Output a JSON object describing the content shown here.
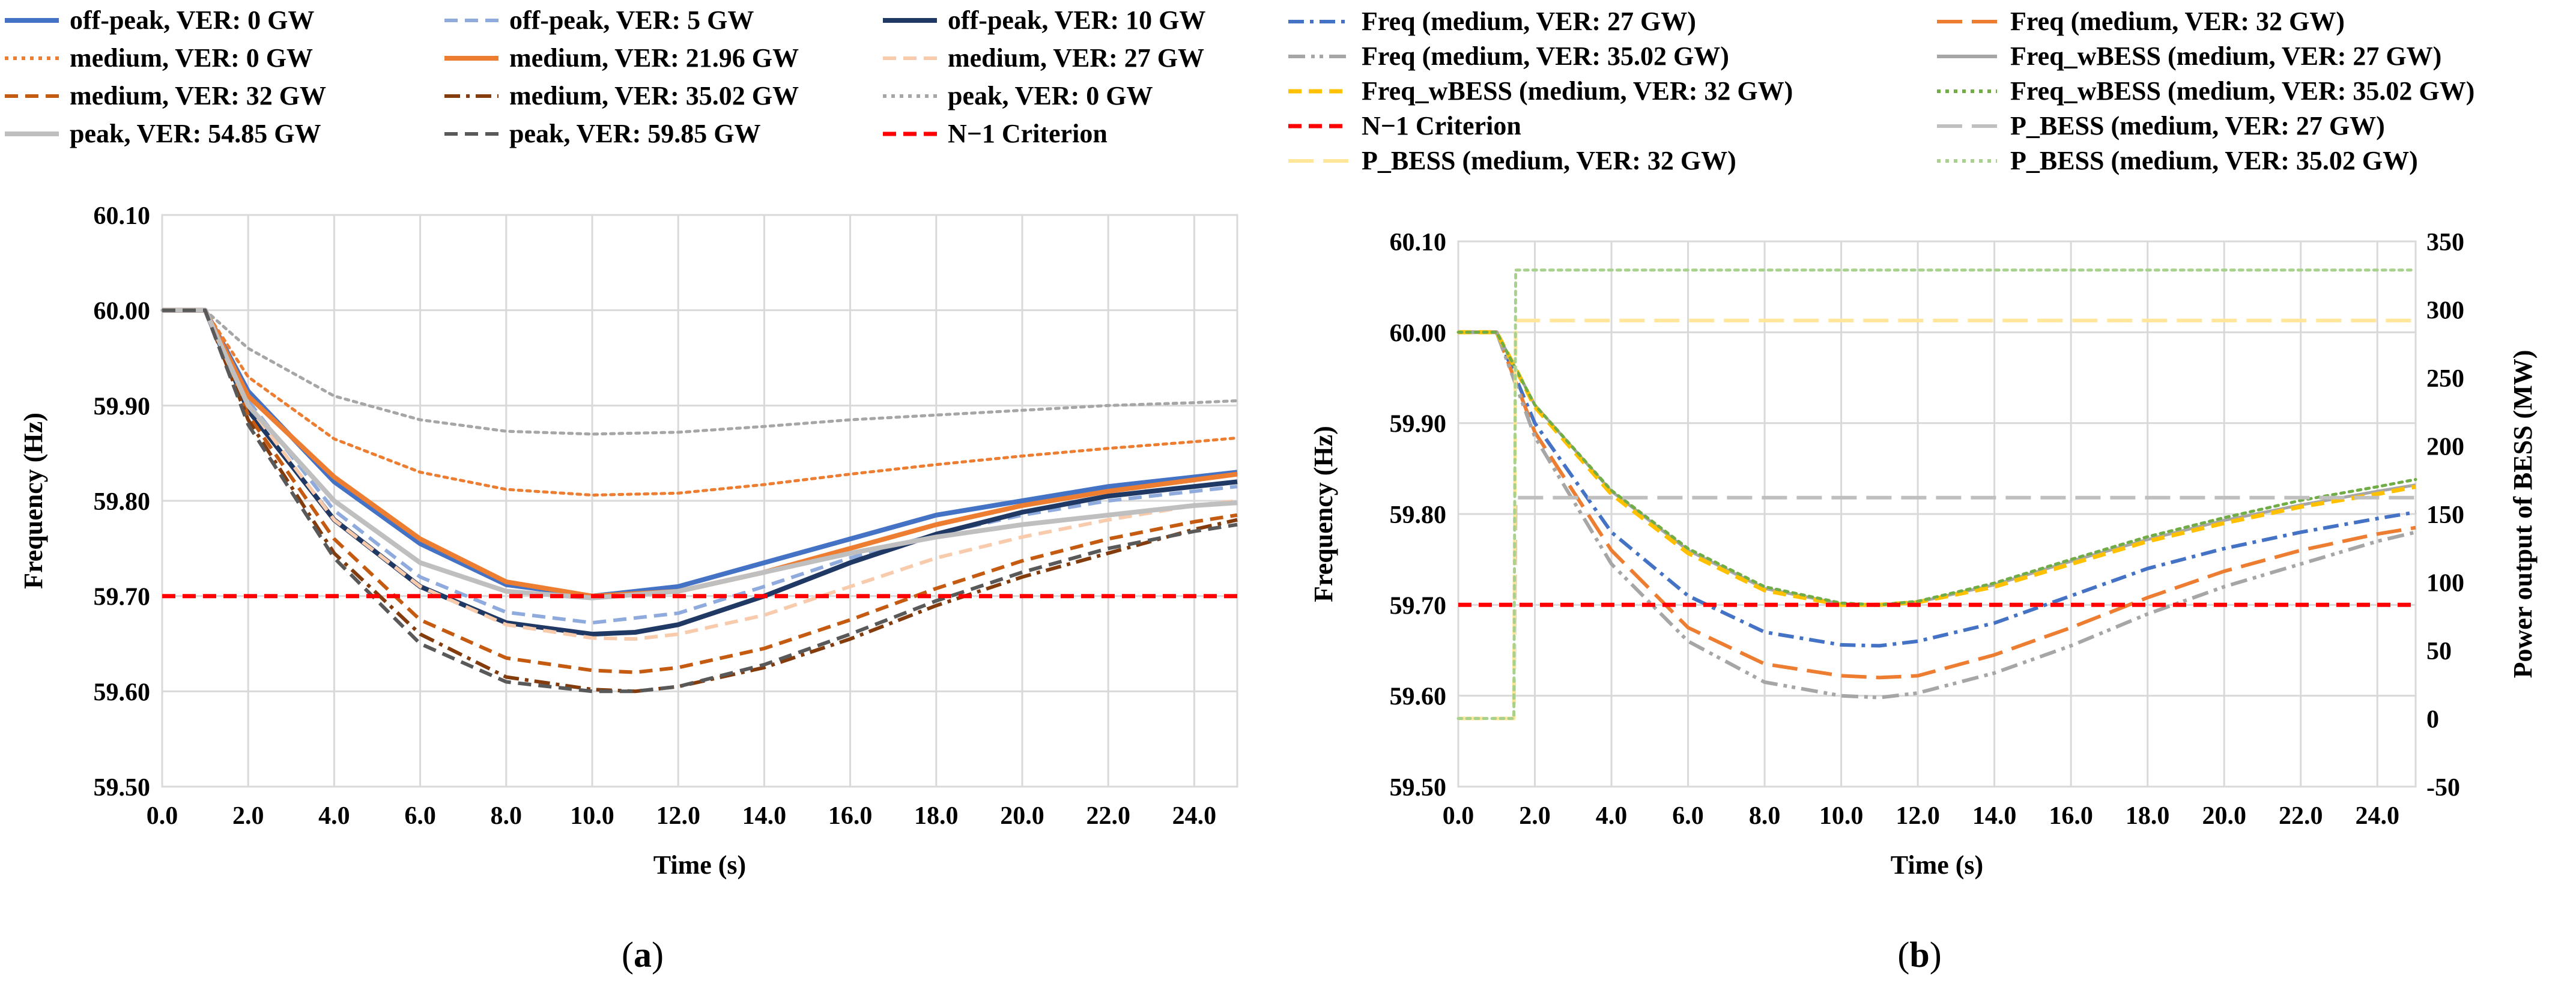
{
  "chart_data": [
    {
      "type": "line",
      "panel_label": "(a)",
      "xlabel": "Time (s)",
      "ylabel": "Frequency (Hz)",
      "xlim": [
        0,
        25
      ],
      "ylim": [
        59.5,
        60.1
      ],
      "x_ticks": [
        "0.0",
        "2.0",
        "4.0",
        "6.0",
        "8.0",
        "10.0",
        "12.0",
        "14.0",
        "16.0",
        "18.0",
        "20.0",
        "22.0",
        "24.0"
      ],
      "y_ticks": [
        "59.50",
        "59.60",
        "59.70",
        "59.80",
        "59.90",
        "60.00",
        "60.10"
      ],
      "legend": {
        "placement": "top"
      },
      "series": [
        {
          "name": "off-peak, VER: 0 GW",
          "color": "#4472C4",
          "dash": "solid",
          "width": 8,
          "x": [
            0,
            1,
            2,
            4,
            6,
            8,
            10,
            12,
            14,
            16,
            18,
            20,
            22,
            24,
            25
          ],
          "y": [
            60.0,
            60.0,
            59.915,
            59.82,
            59.755,
            59.712,
            59.7,
            59.71,
            59.735,
            59.76,
            59.785,
            59.8,
            59.815,
            59.825,
            59.83
          ]
        },
        {
          "name": "off-peak, VER: 5 GW",
          "color": "#8FAADC",
          "dash": "dash",
          "width": 6,
          "x": [
            0,
            1,
            2,
            4,
            6,
            8,
            10,
            12,
            14,
            16,
            18,
            20,
            22,
            24,
            25
          ],
          "y": [
            60.0,
            60.0,
            59.905,
            59.79,
            59.72,
            59.683,
            59.672,
            59.682,
            59.71,
            59.74,
            59.765,
            59.785,
            59.8,
            59.81,
            59.815
          ]
        },
        {
          "name": "off-peak, VER: 10 GW",
          "color": "#1F3864",
          "dash": "solid",
          "width": 8,
          "x": [
            0,
            1,
            2,
            4,
            6,
            8,
            10,
            11,
            12,
            14,
            16,
            18,
            20,
            22,
            24,
            25
          ],
          "y": [
            60.0,
            60.0,
            59.895,
            59.78,
            59.71,
            59.672,
            59.66,
            59.662,
            59.67,
            59.7,
            59.735,
            59.765,
            59.788,
            59.805,
            59.815,
            59.82
          ]
        },
        {
          "name": "medium, VER: 0 GW",
          "color": "#ED7D31",
          "dash": "dot",
          "width": 5,
          "x": [
            0,
            1,
            2,
            4,
            6,
            8,
            10,
            12,
            14,
            16,
            18,
            20,
            22,
            24,
            25
          ],
          "y": [
            60.0,
            60.0,
            59.93,
            59.865,
            59.83,
            59.812,
            59.806,
            59.808,
            59.817,
            59.828,
            59.838,
            59.847,
            59.855,
            59.862,
            59.866
          ]
        },
        {
          "name": "medium, VER: 21.96 GW",
          "color": "#ED7D31",
          "dash": "solid",
          "width": 8,
          "x": [
            0,
            1,
            2,
            4,
            6,
            8,
            10,
            12,
            14,
            16,
            18,
            20,
            22,
            24,
            25
          ],
          "y": [
            60.0,
            60.0,
            59.91,
            59.825,
            59.76,
            59.715,
            59.7,
            59.705,
            59.725,
            59.75,
            59.775,
            59.795,
            59.81,
            59.822,
            59.828
          ]
        },
        {
          "name": "medium, VER: 27 GW",
          "color": "#F8CBAD",
          "dash": "dash",
          "width": 6,
          "x": [
            0,
            1,
            2,
            4,
            6,
            8,
            10,
            11,
            12,
            14,
            16,
            18,
            20,
            22,
            24,
            25
          ],
          "y": [
            60.0,
            60.0,
            59.9,
            59.78,
            59.71,
            59.67,
            59.656,
            59.655,
            59.66,
            59.68,
            59.71,
            59.74,
            59.762,
            59.78,
            59.795,
            59.8
          ]
        },
        {
          "name": "medium, VER: 32 GW",
          "color": "#C55A11",
          "dash": "dash",
          "width": 6,
          "x": [
            0,
            1,
            2,
            4,
            6,
            8,
            10,
            11,
            12,
            14,
            16,
            18,
            20,
            22,
            24,
            25
          ],
          "y": [
            60.0,
            60.0,
            59.89,
            59.76,
            59.675,
            59.635,
            59.622,
            59.62,
            59.625,
            59.645,
            59.675,
            59.708,
            59.737,
            59.76,
            59.778,
            59.785
          ]
        },
        {
          "name": "medium, VER: 35.02 GW",
          "color": "#843C0C",
          "dash": "dashdot",
          "width": 6,
          "x": [
            0,
            1,
            2,
            4,
            6,
            8,
            10,
            11,
            12,
            14,
            16,
            18,
            20,
            22,
            24,
            25
          ],
          "y": [
            60.0,
            60.0,
            59.885,
            59.745,
            59.66,
            59.615,
            59.602,
            59.6,
            59.605,
            59.625,
            59.655,
            59.69,
            59.72,
            59.745,
            59.77,
            59.78
          ]
        },
        {
          "name": "peak, VER: 0 GW",
          "color": "#A6A6A6",
          "dash": "dot",
          "width": 5,
          "x": [
            0,
            1,
            2,
            4,
            6,
            8,
            10,
            12,
            14,
            16,
            18,
            20,
            22,
            24,
            25
          ],
          "y": [
            60.0,
            60.0,
            59.96,
            59.91,
            59.885,
            59.873,
            59.87,
            59.872,
            59.878,
            59.885,
            59.89,
            59.895,
            59.9,
            59.903,
            59.905
          ]
        },
        {
          "name": "peak, VER: 54.85 GW",
          "color": "#BFBFBF",
          "dash": "solid",
          "width": 8,
          "x": [
            0,
            1,
            2,
            4,
            6,
            8,
            10,
            12,
            14,
            16,
            18,
            20,
            22,
            24,
            25
          ],
          "y": [
            60.0,
            60.0,
            59.9,
            59.8,
            59.735,
            59.705,
            59.698,
            59.705,
            59.725,
            59.745,
            59.762,
            59.775,
            59.785,
            59.795,
            59.798
          ]
        },
        {
          "name": "peak, VER: 59.85 GW",
          "color": "#595959",
          "dash": "dash",
          "width": 6,
          "x": [
            0,
            1,
            2,
            4,
            6,
            8,
            10,
            11,
            12,
            14,
            16,
            18,
            20,
            22,
            24,
            25
          ],
          "y": [
            60.0,
            60.0,
            59.88,
            59.74,
            59.65,
            59.61,
            59.6,
            59.6,
            59.605,
            59.628,
            59.66,
            59.695,
            59.725,
            59.75,
            59.768,
            59.775
          ]
        },
        {
          "name": "N−1 Criterion",
          "color": "#FF0000",
          "dash": "dash",
          "width": 7,
          "x": [
            0,
            25
          ],
          "y": [
            59.7,
            59.7
          ]
        }
      ]
    },
    {
      "type": "line",
      "panel_label": "(b)",
      "xlabel": "Time (s)",
      "ylabel": "Frequency (Hz)",
      "y2label": "Power output of BESS (MW)",
      "xlim": [
        0,
        25
      ],
      "ylim": [
        59.5,
        60.1
      ],
      "y2lim": [
        -50,
        350
      ],
      "x_ticks": [
        "0.0",
        "2.0",
        "4.0",
        "6.0",
        "8.0",
        "10.0",
        "12.0",
        "14.0",
        "16.0",
        "18.0",
        "20.0",
        "22.0",
        "24.0"
      ],
      "y_ticks": [
        "59.50",
        "59.60",
        "59.70",
        "59.80",
        "59.90",
        "60.00",
        "60.10"
      ],
      "y2_ticks": [
        "-50",
        "0",
        "50",
        "100",
        "150",
        "200",
        "250",
        "300",
        "350"
      ],
      "legend": {
        "placement": "top"
      },
      "series": [
        {
          "name": "Freq (medium, VER: 27 GW)",
          "color": "#4472C4",
          "dash": "dashdot",
          "width": 6,
          "axis": "left",
          "x": [
            0,
            1,
            2,
            4,
            6,
            8,
            10,
            11,
            12,
            14,
            16,
            18,
            20,
            22,
            24,
            25
          ],
          "y": [
            60.0,
            60.0,
            59.9,
            59.78,
            59.71,
            59.67,
            59.656,
            59.655,
            59.66,
            59.68,
            59.71,
            59.74,
            59.762,
            59.78,
            59.795,
            59.802
          ]
        },
        {
          "name": "Freq (medium, VER: 32 GW)",
          "color": "#ED7D31",
          "dash": "longdash",
          "width": 6,
          "axis": "left",
          "x": [
            0,
            1,
            2,
            4,
            6,
            8,
            10,
            11,
            12,
            14,
            16,
            18,
            20,
            22,
            24,
            25
          ],
          "y": [
            60.0,
            60.0,
            59.89,
            59.76,
            59.675,
            59.635,
            59.622,
            59.62,
            59.622,
            59.645,
            59.675,
            59.708,
            59.737,
            59.76,
            59.778,
            59.785
          ]
        },
        {
          "name": "Freq (medium, VER: 35.02 GW)",
          "color": "#A6A6A6",
          "dash": "dashdotdot",
          "width": 6,
          "axis": "left",
          "x": [
            0,
            1,
            2,
            4,
            6,
            8,
            10,
            11,
            12,
            14,
            16,
            18,
            20,
            22,
            24,
            25
          ],
          "y": [
            60.0,
            60.0,
            59.885,
            59.745,
            59.66,
            59.615,
            59.6,
            59.598,
            59.603,
            59.625,
            59.655,
            59.69,
            59.72,
            59.745,
            59.77,
            59.78
          ]
        },
        {
          "name": "Freq_wBESS (medium, VER: 27 GW)",
          "color": "#A6A6A6",
          "dash": "solid",
          "width": 5,
          "axis": "left",
          "x": [
            0,
            1,
            1.5,
            2,
            4,
            6,
            8,
            10,
            11,
            12,
            14,
            16,
            18,
            20,
            22,
            24,
            25
          ],
          "y": [
            60.0,
            60.0,
            59.96,
            59.92,
            59.825,
            59.76,
            59.718,
            59.701,
            59.7,
            59.703,
            59.722,
            59.748,
            59.772,
            59.793,
            59.81,
            59.825,
            59.832
          ]
        },
        {
          "name": "Freq_wBESS (medium, VER: 32 GW)",
          "color": "#FFC000",
          "dash": "dash",
          "width": 7,
          "axis": "left",
          "x": [
            0,
            1,
            1.5,
            2,
            4,
            6,
            8,
            10,
            11,
            12,
            14,
            16,
            18,
            20,
            22,
            24,
            25
          ],
          "y": [
            60.0,
            60.0,
            59.96,
            59.918,
            59.822,
            59.757,
            59.716,
            59.7,
            59.7,
            59.703,
            59.72,
            59.745,
            59.77,
            59.79,
            59.808,
            59.822,
            59.83
          ]
        },
        {
          "name": "Freq_wBESS (medium, VER: 35.02 GW)",
          "color": "#70AD47",
          "dash": "dot",
          "width": 5,
          "axis": "left",
          "x": [
            0,
            1,
            1.5,
            2,
            4,
            6,
            8,
            10,
            11,
            12,
            14,
            16,
            18,
            20,
            22,
            24,
            25
          ],
          "y": [
            60.0,
            60.0,
            59.96,
            59.92,
            59.826,
            59.762,
            59.72,
            59.702,
            59.7,
            59.704,
            59.724,
            59.75,
            59.775,
            59.796,
            59.815,
            59.83,
            59.838
          ]
        },
        {
          "name": "N−1 Criterion",
          "color": "#FF0000",
          "dash": "dash",
          "width": 7,
          "axis": "left",
          "x": [
            0,
            25
          ],
          "y": [
            59.7,
            59.7
          ]
        },
        {
          "name": "P_BESS (medium, VER: 27 GW)",
          "color": "#BFBFBF",
          "dash": "longdash",
          "width": 6,
          "axis": "right",
          "x": [
            0,
            1.45,
            1.5,
            25
          ],
          "y": [
            0,
            0,
            162,
            162
          ]
        },
        {
          "name": "P_BESS (medium, VER: 32 GW)",
          "color": "#FFE699",
          "dash": "longdash",
          "width": 6,
          "axis": "right",
          "x": [
            0,
            1.45,
            1.5,
            25
          ],
          "y": [
            0,
            0,
            292,
            292
          ]
        },
        {
          "name": "P_BESS (medium, VER: 35.02 GW)",
          "color": "#A9D18E",
          "dash": "dot",
          "width": 5,
          "axis": "right",
          "x": [
            0,
            1.45,
            1.5,
            25
          ],
          "y": [
            0,
            0,
            329,
            329
          ]
        }
      ]
    }
  ]
}
